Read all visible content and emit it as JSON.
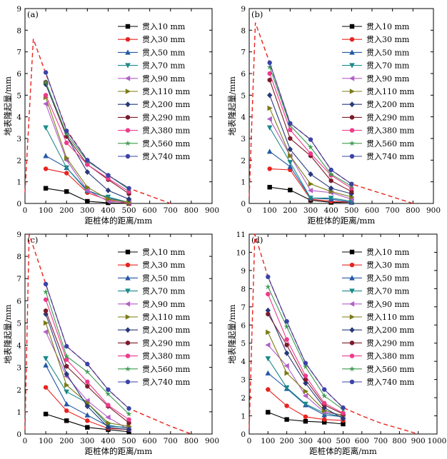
{
  "chart_data": [
    {
      "type": "line",
      "panel_label": "(a)",
      "xlabel": "距桩体的距离/mm",
      "ylabel": "地表隆起量/mm",
      "xlim": [
        0,
        900
      ],
      "ylim": [
        0,
        9
      ],
      "xticks": [
        0,
        100,
        200,
        300,
        400,
        500,
        600,
        700,
        800,
        900
      ],
      "yticks": [
        0,
        1,
        2,
        3,
        4,
        5,
        6,
        7,
        8,
        9
      ],
      "x": [
        100,
        200,
        300,
        400,
        500
      ],
      "series": [
        {
          "name": "贯入10 mm",
          "values": [
            0.7,
            0.55,
            0.1,
            0.03,
            0.0
          ]
        },
        {
          "name": "贯入30 mm",
          "values": [
            1.6,
            1.4,
            0.5,
            0.15,
            0.0
          ]
        },
        {
          "name": "贯入50 mm",
          "values": [
            2.2,
            1.65,
            0.6,
            0.25,
            0.05
          ]
        },
        {
          "name": "贯入70 mm",
          "values": [
            3.5,
            1.65,
            0.55,
            0.3,
            0.05
          ]
        },
        {
          "name": "贯入90 mm",
          "values": [
            4.6,
            2.0,
            0.6,
            0.1,
            0.05
          ]
        },
        {
          "name": "贯入110 mm",
          "values": [
            4.9,
            2.1,
            0.75,
            0.2,
            0.05
          ]
        },
        {
          "name": "贯入200 mm",
          "values": [
            5.5,
            3.1,
            1.45,
            0.6,
            0.2
          ]
        },
        {
          "name": "贯入290 mm",
          "values": [
            5.6,
            3.1,
            1.8,
            1.1,
            0.45
          ]
        },
        {
          "name": "贯入380 mm",
          "values": [
            5.0,
            2.8,
            1.8,
            1.15,
            0.55
          ]
        },
        {
          "name": "贯入560 mm",
          "values": [
            5.6,
            3.2,
            1.95,
            1.3,
            0.65
          ]
        },
        {
          "name": "贯入740 mm",
          "values": [
            6.05,
            3.35,
            2.0,
            1.3,
            0.7
          ]
        }
      ],
      "envelope": {
        "x": [
          0,
          40,
          100,
          200,
          300,
          400,
          500,
          600,
          700
        ],
        "y": [
          0.5,
          7.6,
          6.0,
          3.4,
          2.0,
          1.3,
          0.7,
          0.35,
          0.0
        ]
      }
    },
    {
      "type": "line",
      "panel_label": "(b)",
      "xlabel": "距桩体的距离/mm",
      "ylabel": "地表隆起量/mm",
      "xlim": [
        0,
        900
      ],
      "ylim": [
        0,
        9
      ],
      "xticks": [
        0,
        100,
        200,
        300,
        400,
        500,
        600,
        700,
        800,
        900
      ],
      "yticks": [
        0,
        1,
        2,
        3,
        4,
        5,
        6,
        7,
        8,
        9
      ],
      "x": [
        100,
        200,
        300,
        400,
        500
      ],
      "series": [
        {
          "name": "贯入10 mm",
          "values": [
            0.75,
            0.62,
            0.15,
            0.05,
            0.05
          ]
        },
        {
          "name": "贯入30 mm",
          "values": [
            1.6,
            1.55,
            0.2,
            0.1,
            0.05
          ]
        },
        {
          "name": "贯入50 mm",
          "values": [
            2.4,
            1.7,
            0.25,
            0.2,
            0.05
          ]
        },
        {
          "name": "贯入70 mm",
          "values": [
            3.5,
            1.9,
            0.25,
            0.25,
            0.1
          ]
        },
        {
          "name": "贯入90 mm",
          "values": [
            3.9,
            2.2,
            0.6,
            0.5,
            0.2
          ]
        },
        {
          "name": "贯入110 mm",
          "values": [
            4.4,
            2.2,
            0.9,
            0.55,
            0.3
          ]
        },
        {
          "name": "贯入200 mm",
          "values": [
            5.0,
            2.5,
            1.35,
            0.7,
            0.45
          ]
        },
        {
          "name": "贯入290 mm",
          "values": [
            5.7,
            3.0,
            2.2,
            1.05,
            0.55
          ]
        },
        {
          "name": "贯入380 mm",
          "values": [
            6.0,
            3.4,
            2.3,
            1.3,
            0.7
          ]
        },
        {
          "name": "贯入560 mm",
          "values": [
            6.3,
            3.6,
            2.6,
            1.35,
            0.8
          ]
        },
        {
          "name": "贯入740 mm",
          "values": [
            6.5,
            3.7,
            2.95,
            1.55,
            0.9
          ]
        }
      ],
      "envelope": {
        "x": [
          0,
          30,
          100,
          200,
          300,
          400,
          500,
          600,
          700,
          800
        ],
        "y": [
          0.3,
          8.35,
          6.5,
          3.7,
          2.95,
          1.55,
          0.9,
          0.6,
          0.3,
          0.0
        ]
      }
    },
    {
      "type": "line",
      "panel_label": "(c)",
      "xlabel": "距桩体的距离/mm",
      "ylabel": "地表隆起量/mm",
      "xlim": [
        0,
        900
      ],
      "ylim": [
        0,
        9
      ],
      "xticks": [
        0,
        100,
        200,
        300,
        400,
        500,
        600,
        700,
        800,
        900
      ],
      "yticks": [
        0,
        1,
        2,
        3,
        4,
        5,
        6,
        7,
        8,
        9
      ],
      "x": [
        100,
        200,
        300,
        400,
        500
      ],
      "series": [
        {
          "name": "贯入10 mm",
          "values": [
            0.9,
            0.6,
            0.3,
            0.2,
            0.1
          ]
        },
        {
          "name": "贯入30 mm",
          "values": [
            2.1,
            1.05,
            0.6,
            0.25,
            0.2
          ]
        },
        {
          "name": "贯入50 mm",
          "values": [
            3.1,
            1.35,
            0.85,
            0.35,
            0.3
          ]
        },
        {
          "name": "贯入70 mm",
          "values": [
            3.4,
            1.9,
            1.4,
            0.4,
            0.25
          ]
        },
        {
          "name": "贯入90 mm",
          "values": [
            4.6,
            2.6,
            1.5,
            0.75,
            0.2
          ]
        },
        {
          "name": "贯入110 mm",
          "values": [
            5.0,
            2.2,
            1.4,
            0.5,
            0.35
          ]
        },
        {
          "name": "贯入200 mm",
          "values": [
            5.4,
            2.7,
            1.25,
            0.3,
            0.2
          ]
        },
        {
          "name": "贯入290 mm",
          "values": [
            5.55,
            3.05,
            2.15,
            1.25,
            0.5
          ]
        },
        {
          "name": "贯入380 mm",
          "values": [
            6.05,
            3.35,
            2.35,
            1.3,
            0.65
          ]
        },
        {
          "name": "贯入560 mm",
          "values": [
            6.4,
            3.5,
            2.8,
            1.8,
            0.9
          ]
        },
        {
          "name": "贯入740 mm",
          "values": [
            6.75,
            3.95,
            3.15,
            2.0,
            1.15
          ]
        }
      ],
      "envelope": {
        "x": [
          0,
          20,
          100,
          200,
          300,
          400,
          500,
          600,
          700,
          800
        ],
        "y": [
          0.2,
          9.0,
          6.75,
          3.95,
          3.15,
          2.0,
          1.15,
          0.75,
          0.35,
          0.0
        ]
      }
    },
    {
      "type": "line",
      "panel_label": "(d)",
      "xlabel": "距桩体的距离/mm",
      "ylabel": "地表隆起量/mm",
      "xlim": [
        0,
        1000
      ],
      "ylim": [
        0,
        11
      ],
      "xticks": [
        0,
        100,
        200,
        300,
        400,
        500,
        600,
        700,
        800,
        900,
        1000
      ],
      "yticks": [
        0,
        1,
        2,
        3,
        4,
        5,
        6,
        7,
        8,
        9,
        10,
        11
      ],
      "x": [
        100,
        200,
        300,
        400,
        500
      ],
      "series": [
        {
          "name": "贯入10 mm",
          "values": [
            1.2,
            0.8,
            0.7,
            0.65,
            0.55
          ]
        },
        {
          "name": "贯入30 mm",
          "values": [
            2.45,
            1.55,
            0.95,
            0.8,
            0.75
          ]
        },
        {
          "name": "贯入50 mm",
          "values": [
            3.35,
            2.5,
            1.6,
            1.05,
            0.95
          ]
        },
        {
          "name": "贯入70 mm",
          "values": [
            4.15,
            2.55,
            1.65,
            1.15,
            0.95
          ]
        },
        {
          "name": "贯入90 mm",
          "values": [
            4.9,
            3.75,
            2.1,
            1.2,
            1.05
          ]
        },
        {
          "name": "贯入110 mm",
          "values": [
            5.6,
            3.35,
            2.35,
            1.3,
            1.0
          ]
        },
        {
          "name": "贯入200 mm",
          "values": [
            6.8,
            4.45,
            2.8,
            1.45,
            0.85
          ]
        },
        {
          "name": "贯入290 mm",
          "values": [
            6.6,
            4.9,
            3.0,
            1.6,
            1.1
          ]
        },
        {
          "name": "贯入380 mm",
          "values": [
            7.7,
            5.2,
            3.2,
            1.7,
            1.15
          ]
        },
        {
          "name": "贯入560 mm",
          "values": [
            8.1,
            5.9,
            3.7,
            2.1,
            1.35
          ]
        },
        {
          "name": "贯入740 mm",
          "values": [
            8.65,
            6.2,
            3.9,
            2.45,
            1.45
          ]
        }
      ],
      "envelope": {
        "x": [
          0,
          30,
          100,
          200,
          300,
          400,
          500,
          600,
          700,
          800,
          900
        ],
        "y": [
          0.3,
          11.0,
          8.65,
          6.2,
          3.9,
          2.45,
          1.45,
          1.0,
          0.6,
          0.3,
          0.0
        ]
      }
    }
  ],
  "style": {
    "series_colors": [
      "#000000",
      "#e8231f",
      "#2358a5",
      "#1b8a8a",
      "#b45fc8",
      "#7b7b17",
      "#263a7a",
      "#7a1c2a",
      "#ef3a8d",
      "#3b9a4e",
      "#3a43a6"
    ],
    "series_markers": [
      "square",
      "circle",
      "triangle-up",
      "triangle-down",
      "triangle-left",
      "triangle-right",
      "diamond",
      "hexagon",
      "circle",
      "star",
      "circle"
    ],
    "envelope_color": "#e8231f"
  }
}
